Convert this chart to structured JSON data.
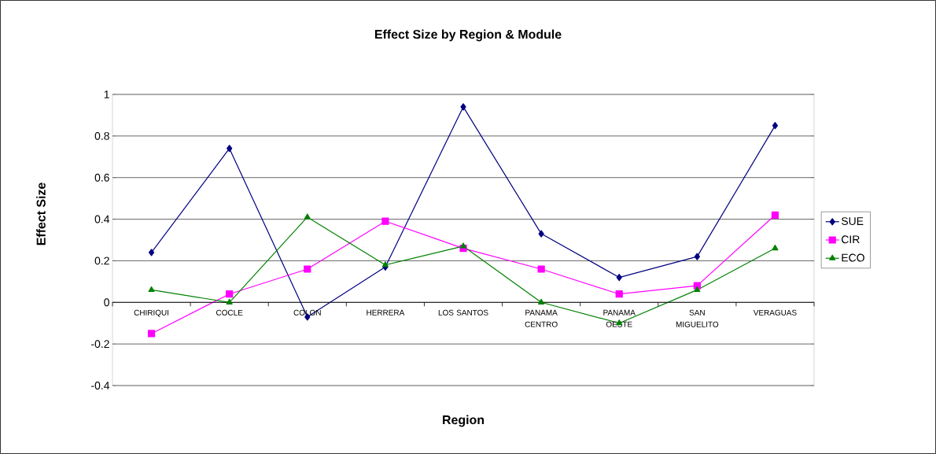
{
  "chart_data": {
    "type": "line",
    "title": "Effect Size by Region & Module",
    "xlabel": "Region",
    "ylabel": "Effect Size",
    "categories": [
      "CHIRIQUI",
      "COCLE",
      "COLON",
      "HERRERA",
      "LOS SANTOS",
      "PANAMA CENTRO",
      "PANAMA OESTE",
      "SAN MIGUELITO",
      "VERAGUAS"
    ],
    "series": [
      {
        "name": "SUE",
        "color": "#000080",
        "marker": "diamond",
        "values": [
          0.24,
          0.74,
          -0.07,
          0.17,
          0.94,
          0.33,
          0.12,
          0.22,
          0.85
        ]
      },
      {
        "name": "CIR",
        "color": "#ff00ff",
        "marker": "square",
        "values": [
          -0.15,
          0.04,
          0.16,
          0.39,
          0.26,
          0.16,
          0.04,
          0.08,
          0.42
        ]
      },
      {
        "name": "ECO",
        "color": "#008000",
        "marker": "triangle",
        "values": [
          0.06,
          0.0,
          0.41,
          0.18,
          0.27,
          0.0,
          -0.1,
          0.06,
          0.26
        ]
      }
    ],
    "ylim": [
      -0.4,
      1
    ],
    "yticks": [
      -0.4,
      -0.2,
      0,
      0.2,
      0.4,
      0.6,
      0.8,
      1
    ],
    "grid": "y",
    "legend": "right",
    "line_style": "solid"
  }
}
